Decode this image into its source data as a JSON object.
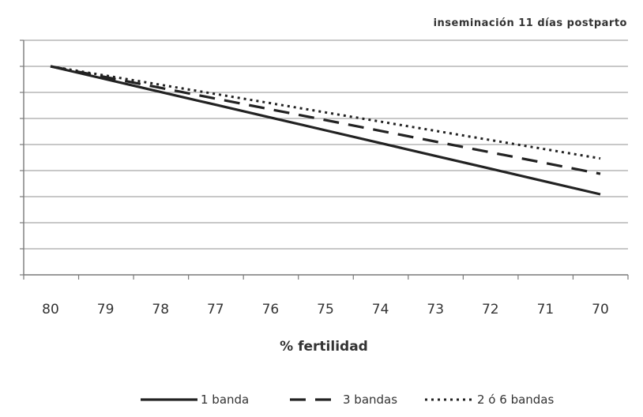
{
  "chart_data": {
    "type": "line",
    "title": "inseminación 11 días postparto",
    "xlabel": "% fertilidad",
    "ylabel": "",
    "categories": [
      "80",
      "79",
      "78",
      "77",
      "76",
      "75",
      "74",
      "73",
      "72",
      "71",
      "70"
    ],
    "ylim": [
      0,
      8
    ],
    "y_gridlines": 8,
    "grid": true,
    "legend_position": "bottom",
    "series": [
      {
        "name": "1 banda",
        "style": "solid",
        "color": "#222222",
        "values": [
          8.0,
          7.5,
          7.0,
          6.5,
          6.0,
          5.5,
          5.0,
          4.5,
          4.0,
          3.5,
          3.0
        ]
      },
      {
        "name": "3 bandas",
        "style": "dashed",
        "color": "#222222",
        "values": [
          8.0,
          7.58,
          7.16,
          6.74,
          6.32,
          5.9,
          5.48,
          5.06,
          4.64,
          4.22,
          3.8
        ]
      },
      {
        "name": "2 ó 6 bandas",
        "style": "dotted",
        "color": "#222222",
        "values": [
          8.0,
          7.64,
          7.28,
          6.92,
          6.56,
          6.2,
          5.84,
          5.48,
          5.12,
          4.76,
          4.4
        ]
      }
    ]
  }
}
